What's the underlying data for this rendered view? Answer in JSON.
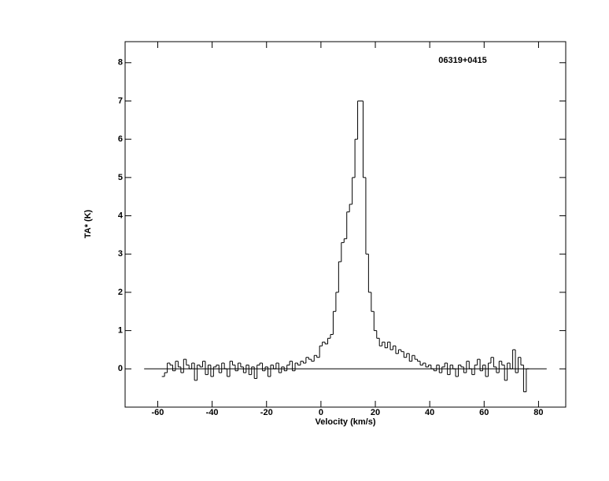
{
  "chart_data": {
    "type": "step",
    "title": "06319+0415",
    "xlabel": "Velocity (km/s)",
    "ylabel": "TA* (K)",
    "xlim": [
      -72,
      90
    ],
    "ylim": [
      -1,
      8.55
    ],
    "xticks": [
      -60,
      -40,
      -20,
      0,
      20,
      40,
      60,
      80
    ],
    "yticks": [
      0,
      1,
      2,
      3,
      4,
      5,
      6,
      7,
      8
    ],
    "hline": 0,
    "hline_xrange": [
      -65,
      83
    ],
    "color": "#000000",
    "x": [
      -58,
      -57,
      -56,
      -55,
      -54,
      -53,
      -52,
      -51,
      -50,
      -49,
      -48,
      -47,
      -46,
      -45,
      -44,
      -43,
      -42,
      -41,
      -40,
      -39,
      -38,
      -37,
      -36,
      -35,
      -34,
      -33,
      -32,
      -31,
      -30,
      -29,
      -28,
      -27,
      -26,
      -25,
      -24,
      -23,
      -22,
      -21,
      -20,
      -19,
      -18,
      -17,
      -16,
      -15,
      -14,
      -13,
      -12,
      -11,
      -10,
      -9,
      -8,
      -7,
      -6,
      -5,
      -4,
      -3,
      -2,
      -1,
      0,
      1,
      2,
      3,
      4,
      5,
      6,
      7,
      8,
      9,
      10,
      11,
      12,
      13,
      14,
      15,
      16,
      17,
      18,
      19,
      20,
      21,
      22,
      23,
      24,
      25,
      26,
      27,
      28,
      29,
      30,
      31,
      32,
      33,
      34,
      35,
      36,
      37,
      38,
      39,
      40,
      41,
      42,
      43,
      44,
      45,
      46,
      47,
      48,
      49,
      50,
      51,
      52,
      53,
      54,
      55,
      56,
      57,
      58,
      59,
      60,
      61,
      62,
      63,
      64,
      65,
      66,
      67,
      68,
      69,
      70,
      71,
      72,
      73,
      74,
      75,
      76
    ],
    "values": [
      -0.2,
      -0.1,
      0.15,
      0.1,
      -0.05,
      0.2,
      0.05,
      -0.1,
      0.25,
      0.1,
      0.0,
      0.15,
      -0.3,
      0.1,
      0.05,
      0.2,
      -0.15,
      0.1,
      -0.2,
      0.05,
      0.1,
      -0.1,
      0.15,
      0.0,
      -0.2,
      0.2,
      0.1,
      -0.05,
      0.15,
      0.05,
      -0.1,
      0.1,
      -0.15,
      0.05,
      -0.25,
      0.1,
      0.15,
      -0.05,
      0.05,
      -0.2,
      0.1,
      0.0,
      0.15,
      -0.1,
      0.05,
      -0.05,
      0.1,
      0.2,
      -0.05,
      0.15,
      0.1,
      0.2,
      0.15,
      0.3,
      0.25,
      0.2,
      0.35,
      0.3,
      0.6,
      0.7,
      0.65,
      0.8,
      0.9,
      1.5,
      2.0,
      2.8,
      3.3,
      3.4,
      4.1,
      4.3,
      5.0,
      6.0,
      7.0,
      7.0,
      5.0,
      3.0,
      2.0,
      1.5,
      1.0,
      0.8,
      0.6,
      0.7,
      0.55,
      0.7,
      0.5,
      0.6,
      0.4,
      0.5,
      0.45,
      0.3,
      0.4,
      0.2,
      0.35,
      0.25,
      0.2,
      0.1,
      0.15,
      0.05,
      0.1,
      0.0,
      -0.05,
      0.1,
      -0.1,
      0.05,
      0.15,
      -0.15,
      0.1,
      0.0,
      -0.2,
      0.1,
      0.05,
      -0.1,
      0.2,
      0.0,
      -0.15,
      0.1,
      0.25,
      -0.05,
      0.1,
      -0.2,
      0.15,
      0.3,
      0.05,
      -0.1,
      0.2,
      0.1,
      -0.3,
      0.15,
      0.0,
      0.5,
      -0.1,
      0.3,
      0.1,
      -0.6,
      0.0
    ]
  }
}
